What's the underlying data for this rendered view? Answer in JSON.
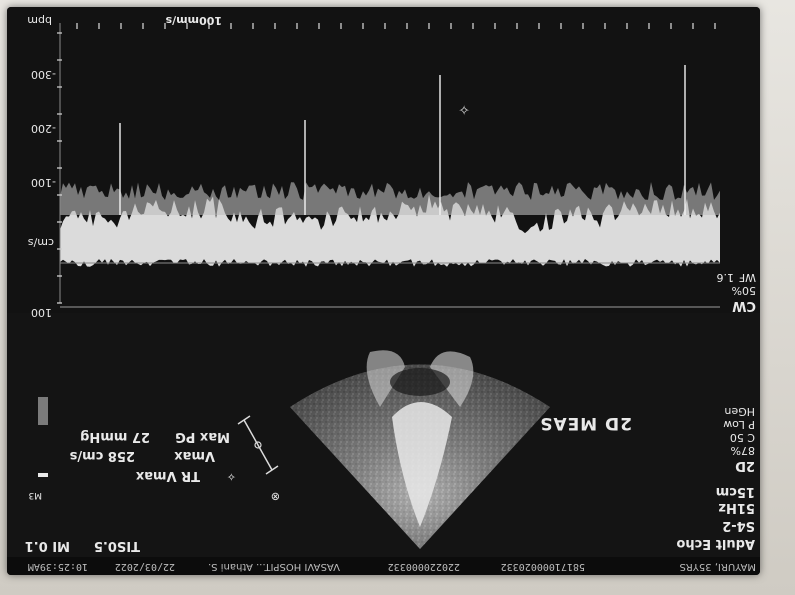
{
  "header": {
    "patient": "MAYURI, 35YRS",
    "id": "58171000020332",
    "extra_id": "220220000332",
    "hospital": "VASAVI HOSPIT... Athani S.",
    "date": "22/03/2022",
    "time": "10:25:39AM",
    "tis": "TIS0.5",
    "mi": "MI 0.1"
  },
  "left_panel": {
    "preset": "Adult Echo",
    "probe": "S4-2",
    "rate": "51Hz",
    "depth": "15cm",
    "mode_2d": "2D",
    "gain": "87%",
    "contrast": "C 50",
    "power": "P Low",
    "harmonic": "HGen"
  },
  "meas": {
    "title": "2D MEAS",
    "tr_label": "TR Vmax",
    "vmax_label": "Vmax",
    "vmax_value": "258 cm/s",
    "pg_label": "Max PG",
    "pg_value": "27 mmHg"
  },
  "markers": {
    "m3": "M3"
  },
  "doppler": {
    "mode": "CW",
    "wf_pct": "50%",
    "wf_label": "WF",
    "wf_num": "1.6",
    "units": "cm/s",
    "sweep": "100mm/s",
    "bpm": "bpm",
    "axis_ticks": [
      "100",
      "-100",
      "-200",
      "-300"
    ]
  }
}
